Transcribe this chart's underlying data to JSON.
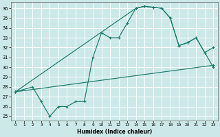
{
  "xlabel": "Humidex (Indice chaleur)",
  "bg_color": "#cde8e8",
  "grid_color": "#ffffff",
  "line_color": "#1a7a6a",
  "xlim": [
    -0.5,
    23.5
  ],
  "ylim": [
    24.6,
    36.6
  ],
  "xticks": [
    0,
    1,
    2,
    3,
    4,
    5,
    6,
    7,
    8,
    9,
    10,
    11,
    12,
    13,
    14,
    15,
    16,
    17,
    18,
    19,
    20,
    21,
    22,
    23
  ],
  "yticks": [
    25,
    26,
    27,
    28,
    29,
    30,
    31,
    32,
    33,
    34,
    35,
    36
  ],
  "line1_x": [
    0,
    2,
    3,
    4,
    5,
    6,
    7,
    8,
    9,
    10,
    11,
    12,
    13,
    14,
    15,
    16,
    17,
    18,
    19,
    20,
    21,
    22,
    23
  ],
  "line1_y": [
    27.5,
    28.0,
    26.5,
    25.0,
    26.0,
    26.0,
    26.5,
    26.5,
    31.0,
    33.5,
    33.0,
    33.0,
    34.5,
    36.0,
    36.2,
    36.1,
    36.0,
    35.0,
    32.2,
    32.5,
    33.0,
    31.5,
    30.0
  ],
  "line2_x": [
    0,
    23
  ],
  "line2_y": [
    27.5,
    30.2
  ],
  "line3_x": [
    0,
    14,
    15,
    16,
    17,
    18,
    19,
    20,
    21,
    22,
    23
  ],
  "line3_y": [
    27.5,
    36.0,
    36.2,
    36.1,
    36.0,
    35.0,
    32.2,
    32.5,
    33.0,
    31.5,
    32.0
  ],
  "marker": "+"
}
